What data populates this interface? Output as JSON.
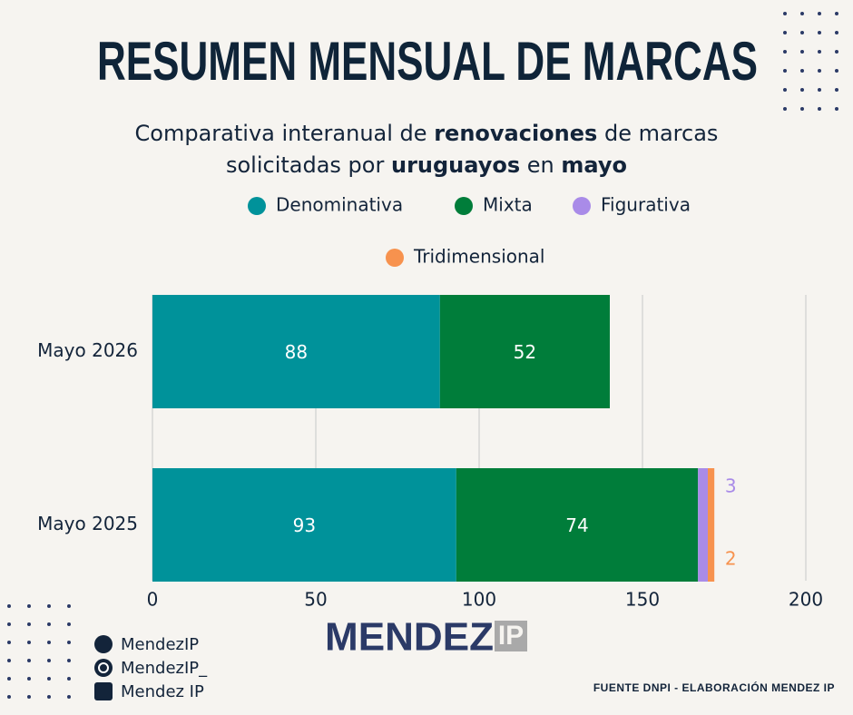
{
  "chart_data": {
    "type": "stacked-bar-horizontal",
    "title": "RESUMEN MENSUAL DE MARCAS",
    "subtitle": [
      [
        {
          "text": "Comparativa interanual de",
          "bold": false
        },
        {
          "text": "renovaciones",
          "bold": true
        },
        {
          "text": "de marcas",
          "bold": false
        }
      ],
      [
        {
          "text": "solicitadas por",
          "bold": false
        },
        {
          "text": "uruguayos",
          "bold": true
        },
        {
          "text": "en",
          "bold": false
        },
        {
          "text": "mayo",
          "bold": true
        }
      ]
    ],
    "categories": [
      "Mayo 2026",
      "Mayo 2025"
    ],
    "series": [
      {
        "name": "Denominativa",
        "color": "#00929a",
        "values": [
          88,
          93
        ]
      },
      {
        "name": "Mixta",
        "color": "#007d3a",
        "values": [
          52,
          74
        ]
      },
      {
        "name": "Figurativa",
        "color": "#a98be8",
        "values": [
          null,
          3
        ]
      },
      {
        "name": "Tridimensional",
        "color": "#f7924e",
        "values": [
          null,
          2
        ]
      }
    ],
    "xlim": [
      0,
      200
    ],
    "xticks": [
      0,
      50,
      100,
      150,
      200
    ],
    "grid": true
  },
  "footer": {
    "social": [
      "MendezIP",
      "MendezIP_",
      "Mendez IP"
    ],
    "logo": [
      "MENDEZ",
      "IP"
    ],
    "source": "FUENTE DNPI - ELABORACIÓN MENDEZ IP"
  }
}
